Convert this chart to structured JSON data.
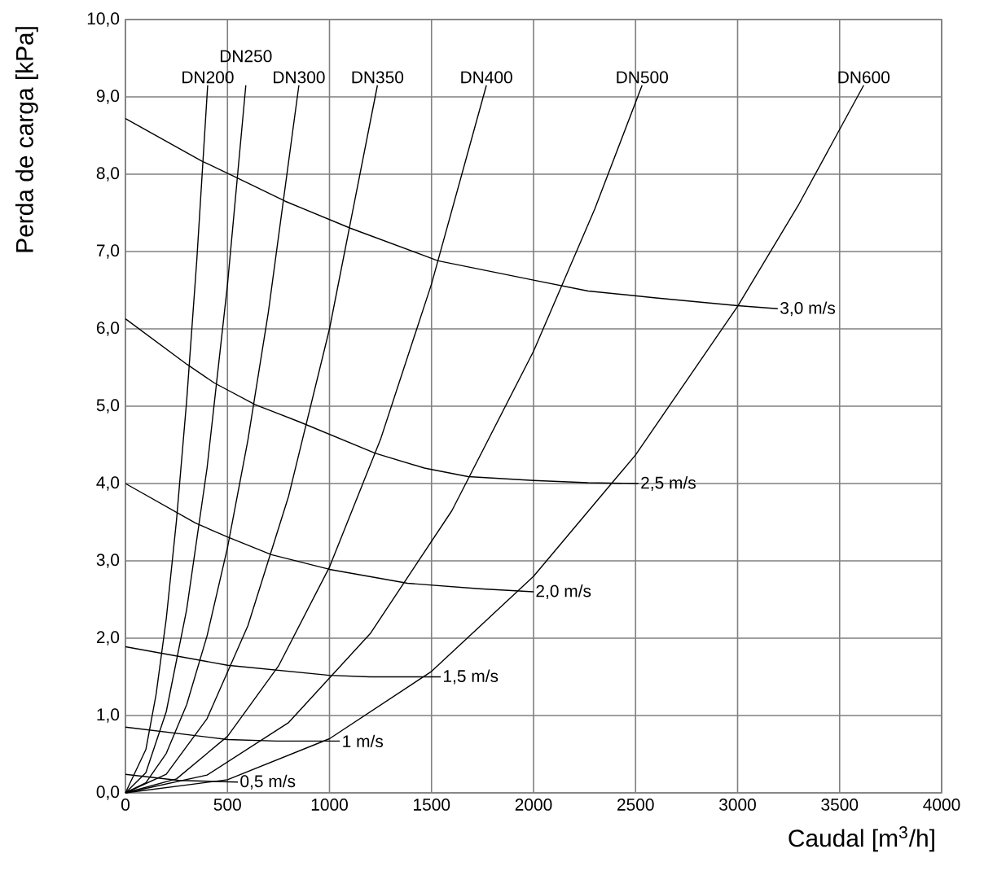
{
  "chart_data": {
    "type": "line",
    "xlabel": "Caudal [m$^{3}$/h]",
    "ylabel": "Perda de carga [kPa]",
    "xlim": [
      0,
      4000
    ],
    "ylim": [
      0,
      10
    ],
    "xticks": [
      0,
      500,
      1000,
      1500,
      2000,
      2500,
      3000,
      3500,
      4000
    ],
    "yticks": [
      {
        "value": 0,
        "label": "0,0"
      },
      {
        "value": 1,
        "label": "1,0"
      },
      {
        "value": 2,
        "label": "2,0"
      },
      {
        "value": 3,
        "label": "3,0"
      },
      {
        "value": 4,
        "label": "4,0"
      },
      {
        "value": 5,
        "label": "5,0"
      },
      {
        "value": 6,
        "label": "6,0"
      },
      {
        "value": 7,
        "label": "7,0"
      },
      {
        "value": 8,
        "label": "8,0"
      },
      {
        "value": 9,
        "label": "9,0"
      },
      {
        "value": 10,
        "label": "10,0"
      }
    ],
    "grid": true,
    "marker": "none",
    "line_style": "solid",
    "series": [
      {
        "name": "DN200",
        "color": "#000000",
        "x": [
          0,
          100,
          150,
          200,
          250,
          300,
          350,
          403
        ],
        "values": [
          0,
          0.56,
          1.27,
          2.25,
          3.52,
          5.07,
          6.9,
          9.15
        ]
      },
      {
        "name": "DN250",
        "color": "#000000",
        "x": [
          0,
          100,
          200,
          300,
          400,
          500,
          590
        ],
        "values": [
          0,
          0.26,
          1.05,
          2.37,
          4.2,
          6.57,
          9.15
        ]
      },
      {
        "name": "DN300",
        "color": "#000000",
        "x": [
          0,
          100,
          200,
          300,
          400,
          500,
          600,
          700,
          850
        ],
        "values": [
          0,
          0.13,
          0.51,
          1.14,
          2.03,
          3.17,
          4.56,
          6.21,
          9.15
        ]
      },
      {
        "name": "DN350",
        "color": "#000000",
        "x": [
          0,
          200,
          400,
          600,
          800,
          1000,
          1235
        ],
        "values": [
          0,
          0.24,
          0.96,
          2.16,
          3.84,
          6.0,
          9.15
        ]
      },
      {
        "name": "DN400",
        "color": "#000000",
        "x": [
          0,
          250,
          500,
          750,
          1000,
          1250,
          1500,
          1769
        ],
        "values": [
          0,
          0.18,
          0.73,
          1.64,
          2.92,
          4.57,
          6.58,
          9.15
        ]
      },
      {
        "name": "DN500",
        "color": "#000000",
        "x": [
          0,
          400,
          800,
          1200,
          1600,
          2000,
          2300,
          2532
        ],
        "values": [
          0,
          0.23,
          0.91,
          2.06,
          3.65,
          5.71,
          7.55,
          9.15
        ]
      },
      {
        "name": "DN600",
        "color": "#000000",
        "x": [
          0,
          500,
          1000,
          1500,
          2000,
          2500,
          3000,
          3300,
          3618
        ],
        "values": [
          0,
          0.17,
          0.7,
          1.57,
          2.8,
          4.37,
          6.29,
          7.61,
          9.15
        ]
      },
      {
        "name": "3,0 m/s",
        "color": "#000000",
        "x": [
          0,
          374,
          542,
          783,
          1104,
          1532,
          2000,
          2267,
          2600,
          3000,
          3197
        ],
        "values": [
          8.72,
          8.17,
          7.96,
          7.65,
          7.3,
          6.88,
          6.63,
          6.49,
          6.4,
          6.3,
          6.26
        ]
      },
      {
        "name": "2,5 m/s",
        "color": "#000000",
        "x": [
          0,
          302,
          436,
          636,
          850,
          1225,
          1465,
          1679,
          2000,
          2267,
          2514
        ],
        "values": [
          6.13,
          5.54,
          5.3,
          5.02,
          4.8,
          4.39,
          4.2,
          4.09,
          4.04,
          4.01,
          4.0
        ]
      },
      {
        "name": "2,0 m/s",
        "color": "#000000",
        "x": [
          0,
          342,
          500,
          715,
          1000,
          1382,
          1733,
          2000
        ],
        "values": [
          4.0,
          3.49,
          3.31,
          3.08,
          2.89,
          2.71,
          2.64,
          2.6
        ]
      },
      {
        "name": "1,5 m/s",
        "color": "#000000",
        "x": [
          0,
          500,
          1000,
          1198,
          1545
        ],
        "values": [
          1.89,
          1.65,
          1.52,
          1.5,
          1.5
        ]
      },
      {
        "name": "1 m/s",
        "color": "#000000",
        "x": [
          0,
          500,
          743,
          1051
        ],
        "values": [
          0.85,
          0.69,
          0.67,
          0.67
        ]
      },
      {
        "name": "0,5 m/s",
        "color": "#000000",
        "x": [
          0,
          262,
          551
        ],
        "values": [
          0.24,
          0.16,
          0.14
        ]
      }
    ]
  }
}
